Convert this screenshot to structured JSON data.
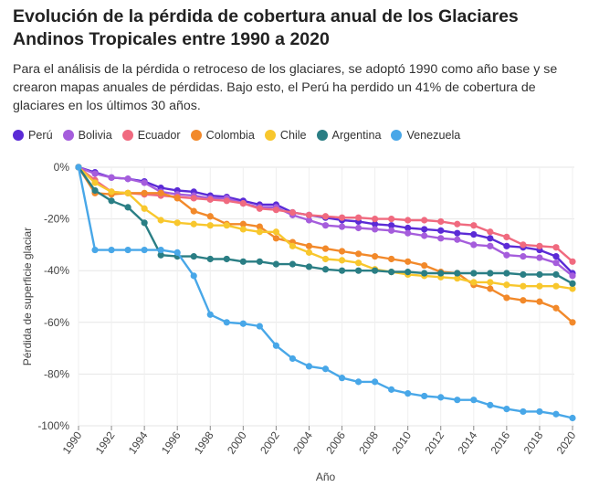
{
  "header": {
    "title": "Evolución de la pérdida de cobertura anual de los Glaciares Andinos Tropicales entre 1990 a 2020",
    "subtitle": "Para el análisis de la pérdida o retroceso de los glaciares, se adoptó 1990 como año base y se crearon mapas anuales de pérdidas. Bajo esto, el Perú ha perdido un 41% de cobertura de glaciares en los últimos 30 años."
  },
  "chart_data": {
    "type": "line",
    "xlabel": "Año",
    "ylabel": "Pérdida de superficie glaciar",
    "xlim": [
      1990,
      2020
    ],
    "ylim": [
      -100,
      0
    ],
    "x_ticks": [
      1990,
      1992,
      1994,
      1996,
      1998,
      2000,
      2002,
      2004,
      2006,
      2008,
      2010,
      2012,
      2014,
      2016,
      2018,
      2020
    ],
    "y_ticks": [
      0,
      -20,
      -40,
      -60,
      -80,
      -100
    ],
    "y_tick_labels": [
      "0%",
      "-20%",
      "-40%",
      "-60%",
      "-80%",
      "-100%"
    ],
    "grid": true,
    "legend_position": "top-left",
    "x": [
      1990,
      1991,
      1992,
      1993,
      1994,
      1995,
      1996,
      1997,
      1998,
      1999,
      2000,
      2001,
      2002,
      2003,
      2004,
      2005,
      2006,
      2007,
      2008,
      2009,
      2010,
      2011,
      2012,
      2013,
      2014,
      2015,
      2016,
      2017,
      2018,
      2019,
      2020
    ],
    "series": [
      {
        "name": "Perú",
        "color": "#5b2bd6",
        "values": [
          0,
          -2,
          -4,
          -4.5,
          -5.5,
          -8,
          -9,
          -9.5,
          -11,
          -11.5,
          -13,
          -14.5,
          -14.5,
          -17.5,
          -18.5,
          -19.5,
          -20.5,
          -21,
          -22,
          -22.5,
          -23.5,
          -24,
          -24.5,
          -25.5,
          -26,
          -27.5,
          -30.5,
          -31,
          -32,
          -34.5,
          -41
        ]
      },
      {
        "name": "Bolivia",
        "color": "#a55ddc",
        "values": [
          0,
          -2.5,
          -4,
          -4.5,
          -6,
          -9.5,
          -10.5,
          -11,
          -12,
          -12,
          -14,
          -15.5,
          -15.5,
          -18.5,
          -20.5,
          -22.5,
          -23,
          -23.5,
          -24,
          -24.5,
          -25.5,
          -26.5,
          -27.5,
          -28,
          -30,
          -30.5,
          -34,
          -34.5,
          -35,
          -37,
          -42
        ]
      },
      {
        "name": "Ecuador",
        "color": "#f06a7f",
        "values": [
          0,
          -5,
          -9.5,
          -10,
          -10.5,
          -11,
          -11.5,
          -12,
          -12.5,
          -13,
          -14,
          -16,
          -16.5,
          -17.5,
          -18.5,
          -19,
          -19.5,
          -19.5,
          -20,
          -20,
          -20.5,
          -20.5,
          -21,
          -22,
          -22.5,
          -25,
          -27,
          -30,
          -30.5,
          -31,
          -36.5
        ]
      },
      {
        "name": "Colombia",
        "color": "#f2892a",
        "values": [
          0,
          -10,
          -10.5,
          -10,
          -10,
          -10,
          -12,
          -17,
          -19,
          -22,
          -22,
          -23,
          -27.5,
          -29,
          -30.5,
          -31.5,
          -32.5,
          -33.5,
          -34.5,
          -35.5,
          -36.5,
          -38,
          -40.5,
          -41,
          -45.5,
          -47,
          -50.5,
          -51.5,
          -52,
          -54.5,
          -60
        ]
      },
      {
        "name": "Chile",
        "color": "#f8c72d",
        "values": [
          0,
          -6,
          -9.5,
          -10,
          -16,
          -20.5,
          -21.5,
          -22,
          -22.5,
          -22.5,
          -24,
          -25,
          -25,
          -30.5,
          -33,
          -35.5,
          -36,
          -37,
          -39.5,
          -40.5,
          -41.5,
          -42,
          -42.5,
          -43,
          -44.5,
          -44.5,
          -45.5,
          -46,
          -46,
          -46,
          -47
        ]
      },
      {
        "name": "Argentina",
        "color": "#2a7e84",
        "values": [
          0,
          -9,
          -13,
          -15.5,
          -21.5,
          -34,
          -34.5,
          -34.5,
          -35.5,
          -35.5,
          -36.5,
          -36.5,
          -37.5,
          -37.5,
          -38.5,
          -39.5,
          -40,
          -40,
          -40,
          -40.5,
          -40.5,
          -41,
          -41,
          -41,
          -41,
          -41,
          -41,
          -41.5,
          -41.5,
          -41.5,
          -45
        ]
      },
      {
        "name": "Venezuela",
        "color": "#48a7e8",
        "values": [
          0,
          -32,
          -32,
          -32,
          -32,
          -32,
          -33,
          -42,
          -57,
          -60,
          -60.5,
          -61.5,
          -69,
          -74,
          -77,
          -78,
          -81.5,
          -83,
          -83,
          -86,
          -87.5,
          -88.5,
          -89,
          -90,
          -90,
          -92,
          -93.5,
          -94.5,
          -94.5,
          -95.5,
          -97
        ]
      }
    ]
  }
}
